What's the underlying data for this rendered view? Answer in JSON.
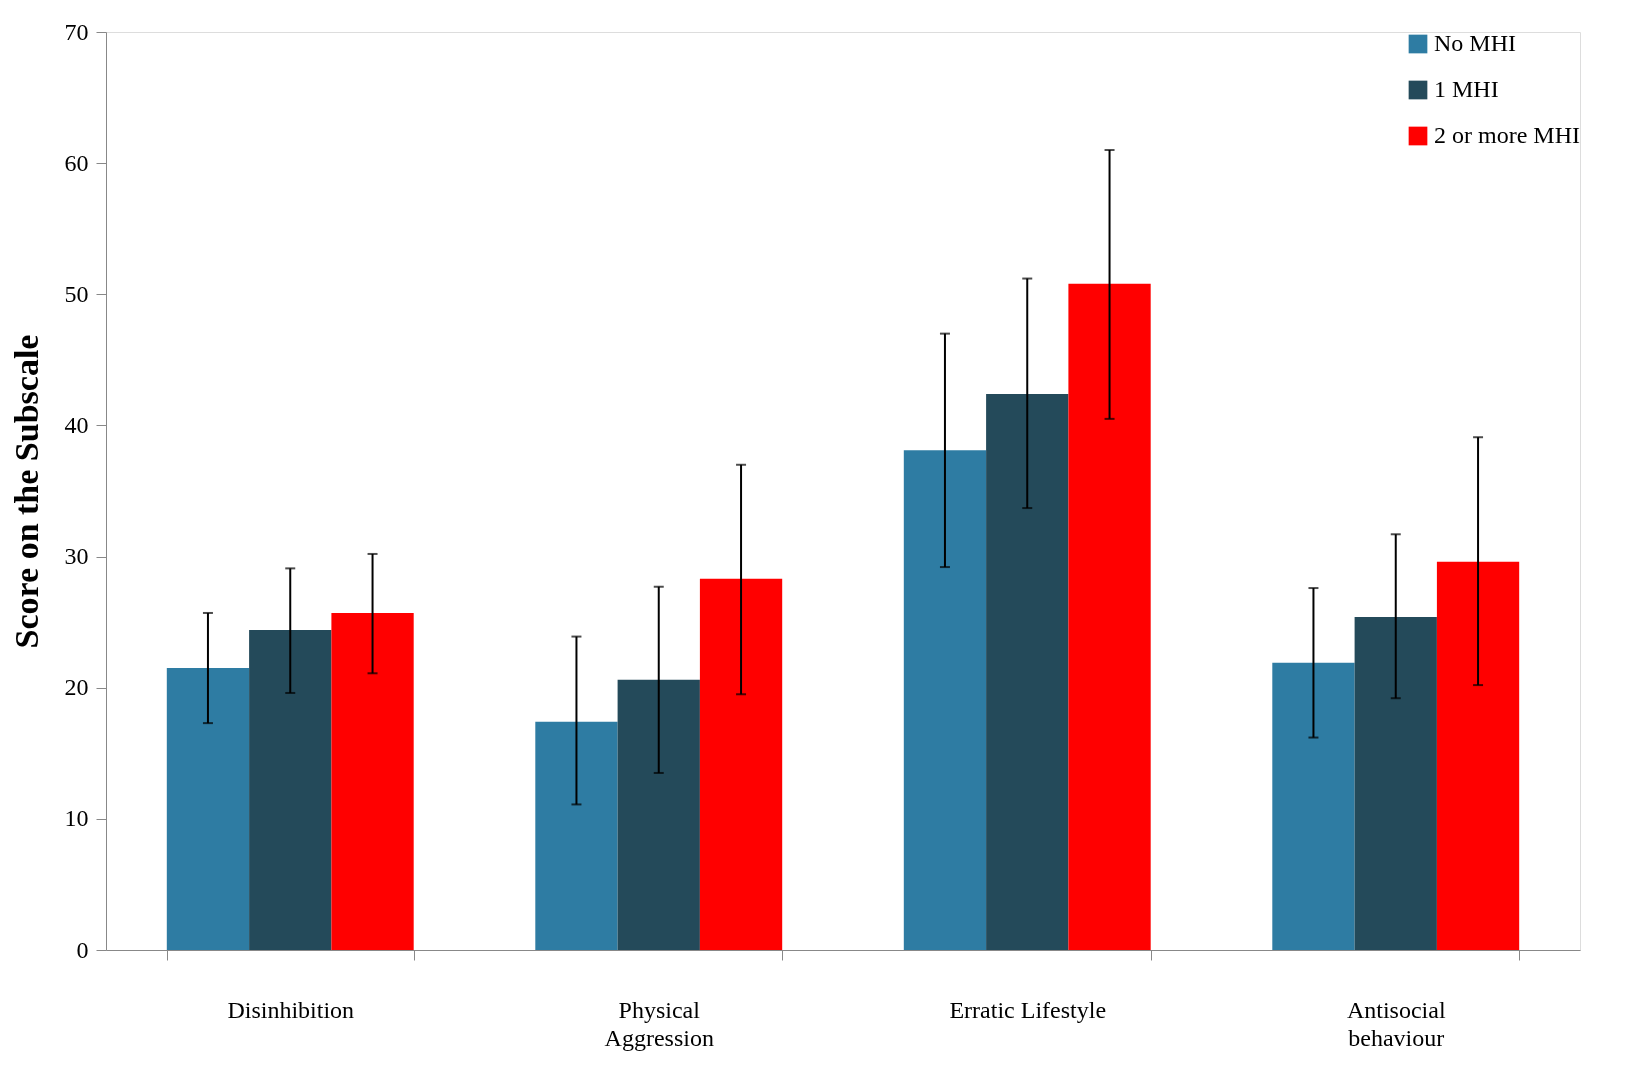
{
  "chart_data": {
    "type": "bar",
    "ylabel": "Score on the Subscale",
    "categories": [
      "Disinhibition",
      "Physical\nAggression",
      "Erratic Lifestyle",
      "Antisocial\nbehaviour"
    ],
    "series": [
      {
        "name": "No MHI",
        "color": "#2e7ca3",
        "values": [
          21.5,
          17.4,
          38.1,
          21.9
        ],
        "errors": [
          [
            17.3,
            25.7
          ],
          [
            11.1,
            23.9
          ],
          [
            29.2,
            47.0
          ],
          [
            16.2,
            27.6
          ]
        ]
      },
      {
        "name": "1 MHI",
        "color": "#244a5a",
        "values": [
          24.4,
          20.6,
          42.4,
          25.4
        ],
        "errors": [
          [
            19.6,
            29.1
          ],
          [
            13.5,
            27.7
          ],
          [
            33.7,
            51.2
          ],
          [
            19.2,
            31.7
          ]
        ]
      },
      {
        "name": "2 or more MHI",
        "color": "#ff0000",
        "values": [
          25.7,
          28.3,
          50.8,
          29.6
        ],
        "errors": [
          [
            21.1,
            30.2
          ],
          [
            19.5,
            37.0
          ],
          [
            40.5,
            61.0
          ],
          [
            20.2,
            39.1
          ]
        ]
      }
    ],
    "ylim": [
      0,
      70
    ],
    "yticks": [
      0,
      10,
      20,
      30,
      40,
      50,
      60,
      70
    ],
    "grid": false,
    "legend": "top right"
  }
}
